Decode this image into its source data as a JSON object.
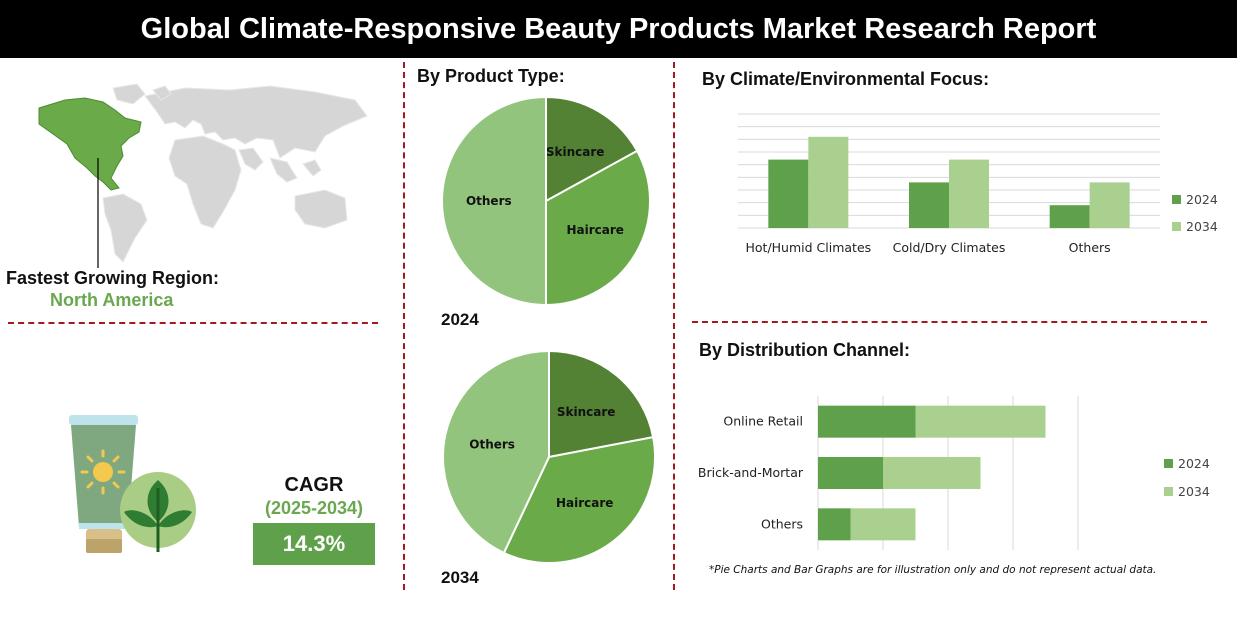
{
  "header": {
    "title": "Global Climate-Responsive Beauty Products Market Research Report"
  },
  "region": {
    "label": "Fastest Growing Region:",
    "value": "North America"
  },
  "cagr": {
    "title": "CAGR",
    "period": "(2025-2034)",
    "value": "14.3%"
  },
  "note": "*Pie Charts and Bar Graphs are for illustration only and do not represent actual data.",
  "colors": {
    "dark_green": "#548235",
    "mid_green": "#6aaa48",
    "light_green": "#93c47d",
    "pale_green": "#a9d08e",
    "divider_red": "#a3191e"
  },
  "icons": [
    "world-map-icon",
    "sunscreen-tube-icon",
    "sun-icon",
    "leaf-plant-icon"
  ],
  "chart_data": [
    {
      "type": "pie",
      "title": "By Product Type:",
      "year_label": "2024",
      "slices": [
        {
          "label": "Skincare",
          "value": 17
        },
        {
          "label": "Haircare",
          "value": 33
        },
        {
          "label": "Others",
          "value": 50
        }
      ],
      "colors": [
        "#548235",
        "#6aaa48",
        "#93c47d"
      ]
    },
    {
      "type": "pie",
      "title": "",
      "year_label": "2034",
      "slices": [
        {
          "label": "Skincare",
          "value": 22
        },
        {
          "label": "Haircare",
          "value": 35
        },
        {
          "label": "Others",
          "value": 43
        }
      ],
      "colors": [
        "#548235",
        "#6aaa48",
        "#93c47d"
      ]
    },
    {
      "type": "bar",
      "title": "By Climate/Environmental Focus:",
      "categories": [
        "Hot/Humid Climates",
        "Cold/Dry Climates",
        "Others"
      ],
      "series": [
        {
          "name": "2024",
          "values": [
            3,
            2,
            1
          ]
        },
        {
          "name": "2034",
          "values": [
            4,
            3,
            2
          ]
        }
      ],
      "ylim": [
        0,
        5
      ],
      "grid": true,
      "legend": "right",
      "colors": [
        "#5fa14a",
        "#a9d08e"
      ]
    },
    {
      "type": "bar",
      "orientation": "horizontal",
      "stacked": true,
      "title": "By Distribution Channel:",
      "categories": [
        "Online Retail",
        "Brick-and-Mortar",
        "Others"
      ],
      "series": [
        {
          "name": "2024",
          "values": [
            3,
            2,
            1
          ]
        },
        {
          "name": "2034",
          "values": [
            4,
            3,
            2
          ]
        }
      ],
      "xlim": [
        0,
        8
      ],
      "grid": true,
      "legend": "right",
      "colors": [
        "#5fa14a",
        "#a9d08e"
      ]
    }
  ]
}
